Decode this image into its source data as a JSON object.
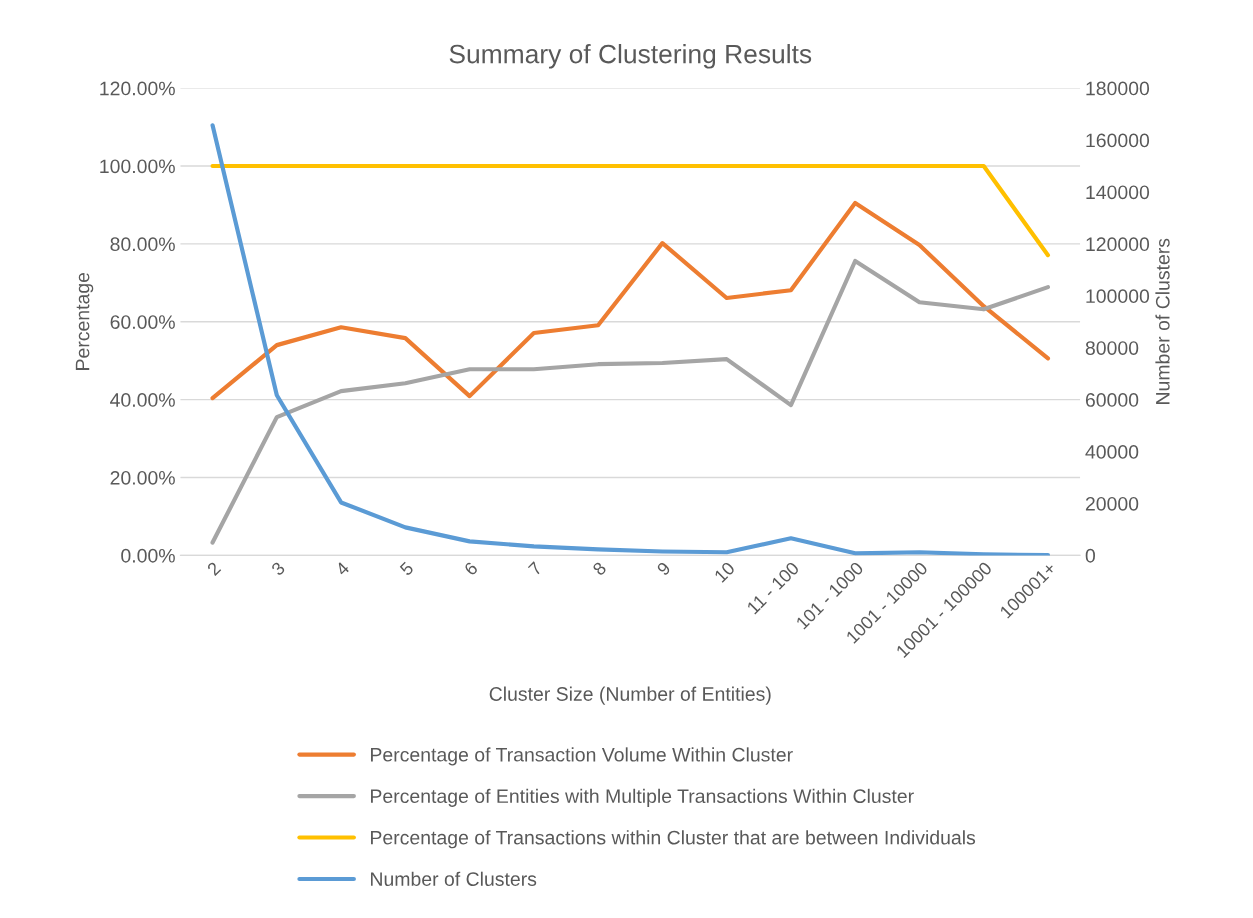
{
  "chart_data": {
    "type": "line",
    "title": "Summary of Clustering Results",
    "xlabel": "Cluster Size (Number of Entities)",
    "ylabel": "Percentage",
    "y2label": "Number of Clusters",
    "categories": [
      "2",
      "3",
      "4",
      "5",
      "6",
      "7",
      "8",
      "9",
      "10",
      "11 - 100",
      "101 - 1000",
      "1001 - 10000",
      "10001 - 100000",
      "100001+"
    ],
    "series": [
      {
        "name": "Percentage of Transaction Volume Within Cluster",
        "color": "#ed7d31",
        "values": [
          40.4,
          54,
          58.6,
          55.8,
          40.9,
          57.1,
          59.1,
          80.2,
          66.1,
          68.1,
          90.5,
          79.7,
          64,
          50.6
        ]
      },
      {
        "name": "Percentage of Entities with Multiple Transactions Within Cluster",
        "color": "#a5a5a5",
        "values": [
          3.3,
          35.5,
          42.2,
          44.2,
          47.8,
          47.8,
          49.1,
          49.4,
          50.4,
          38.6,
          75.6,
          65,
          63.2,
          68.9
        ]
      },
      {
        "name": "Percentage of Transactions within Cluster that are between Individuals",
        "color": "#ffc000",
        "values": [
          100,
          100,
          100,
          100,
          100,
          100,
          100,
          100,
          100,
          100,
          100,
          100,
          100,
          77.1
        ]
      },
      {
        "name": "Number of Clusters",
        "color": "#5b9bd5",
        "axis": "y2",
        "values": [
          165700,
          61700,
          20400,
          10800,
          5400,
          3500,
          2300,
          1500,
          1200,
          6600,
          800,
          1200,
          400,
          100
        ]
      }
    ],
    "ylim": [
      0,
      120
    ],
    "yticks": [
      {
        "value": 0,
        "label": "0.00%"
      },
      {
        "value": 20,
        "label": "20.00%"
      },
      {
        "value": 40,
        "label": "40.00%"
      },
      {
        "value": 60,
        "label": "60.00%"
      },
      {
        "value": 80,
        "label": "80.00%"
      },
      {
        "value": 100,
        "label": "100.00%"
      },
      {
        "value": 120,
        "label": "120.00%"
      }
    ],
    "y2lim": [
      0,
      180000
    ],
    "y2ticks": [
      0,
      20000,
      40000,
      60000,
      80000,
      100000,
      120000,
      140000,
      160000,
      180000
    ],
    "grid": "y",
    "legend": "bottom",
    "marker": "none",
    "line_style": "solid"
  }
}
